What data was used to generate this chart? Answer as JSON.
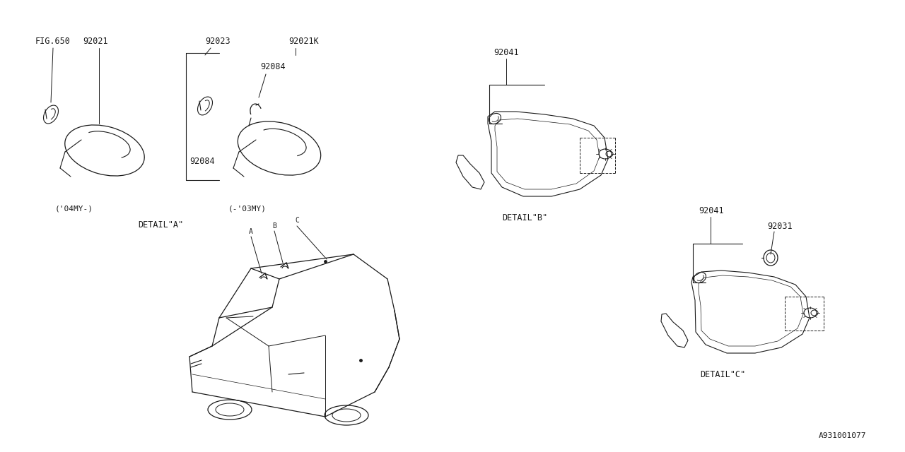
{
  "bg_color": "#ffffff",
  "line_color": "#1a1a1a",
  "fig_width": 12.8,
  "fig_height": 6.4,
  "diagram_id": "A931001077",
  "labels": {
    "fig650": "FIG.650",
    "part_92021": "92021",
    "part_92023": "92023",
    "part_92021K": "92021K",
    "part_92084_top": "92084",
    "part_92084_bot": "92084",
    "part_92041_b": "92041",
    "part_92041_c": "92041",
    "part_92031": "92031",
    "year_04": "('04MY-)",
    "year_03": "(-'03MY)",
    "detail_a": "DETAIL\"A\"",
    "detail_b": "DETAIL\"B\"",
    "detail_c": "DETAIL\"C\"",
    "point_a": "A",
    "point_b": "B",
    "point_c": "C"
  },
  "font_size_label": 8.5,
  "font_size_detail": 8.5,
  "font_size_year": 8,
  "font_size_id": 8,
  "font_family": "monospace"
}
